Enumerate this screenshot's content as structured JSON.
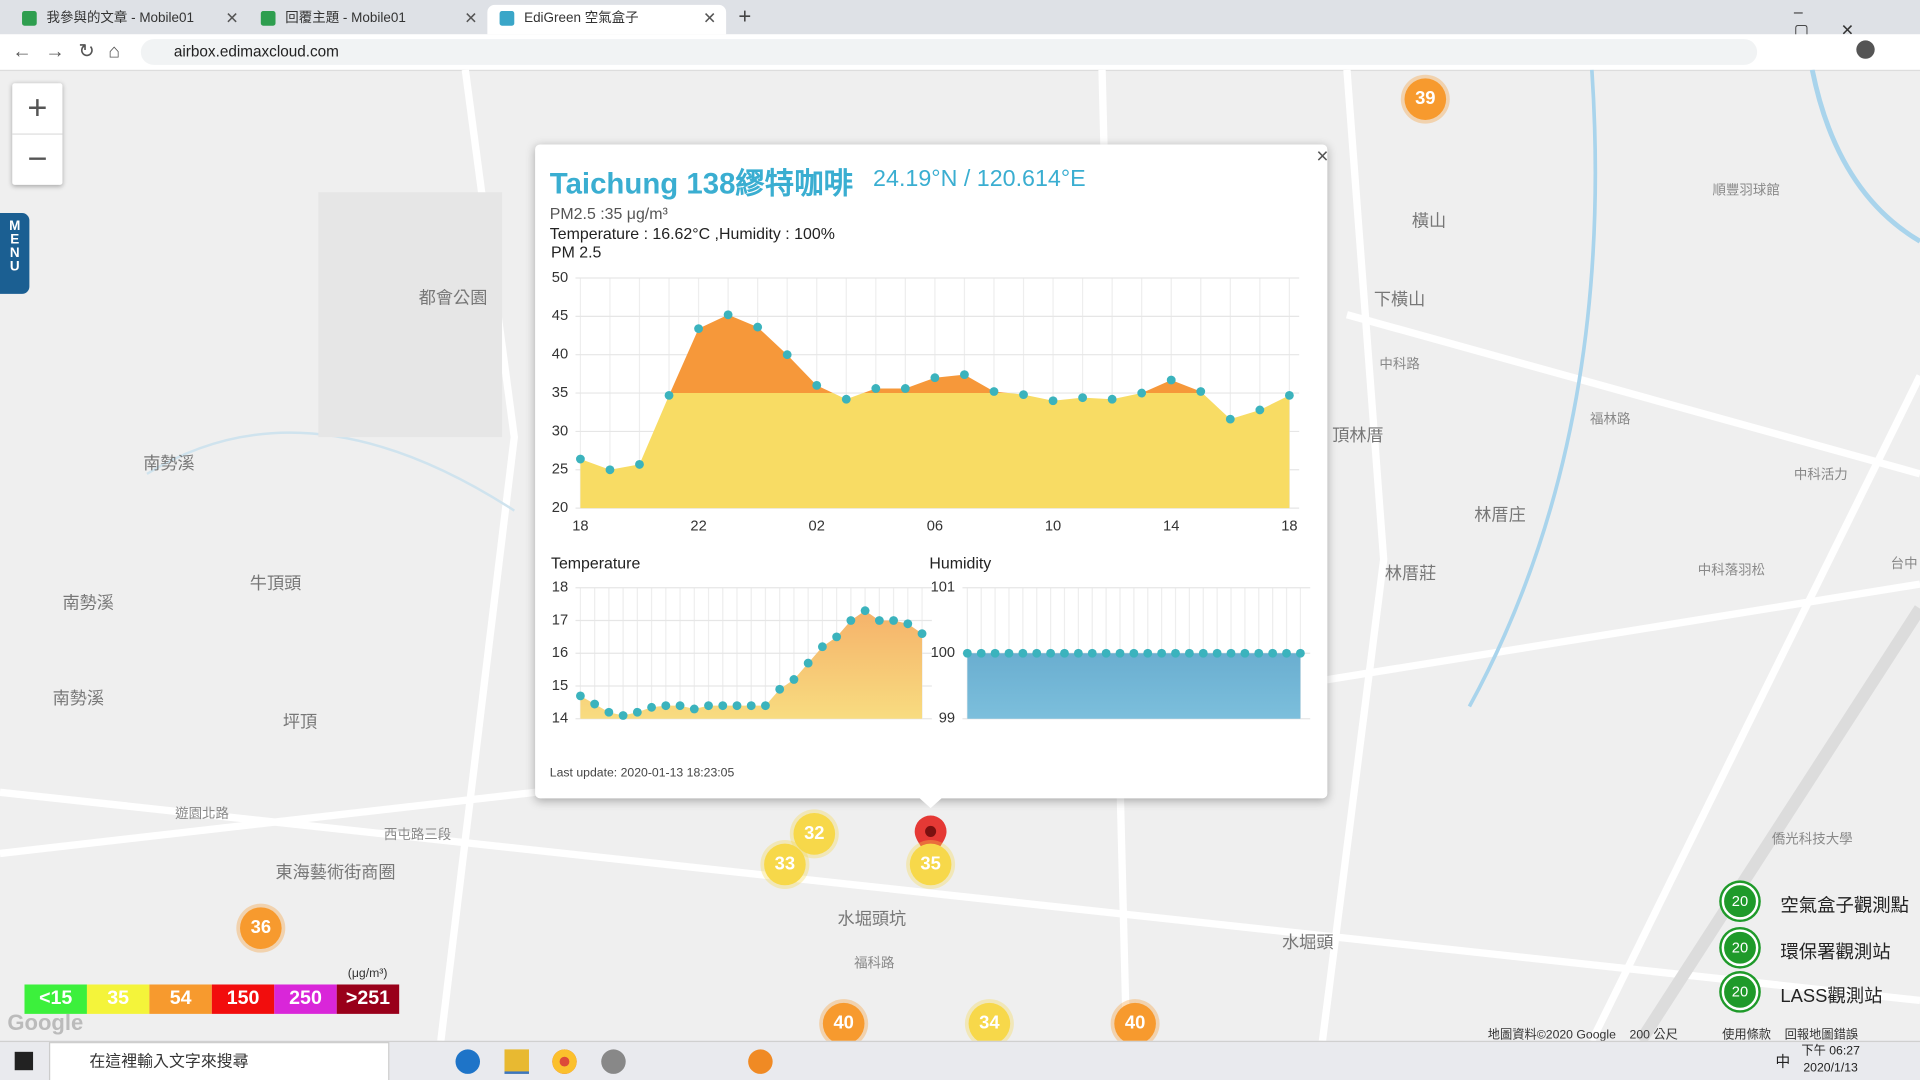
{
  "browser": {
    "tabs": [
      "我參與的文章 - Mobile01",
      "回覆主題 - Mobile01",
      "EdiGreen 空氣盒子"
    ],
    "url": "airbox.edimaxcloud.com"
  },
  "map": {
    "zoom_in": "+",
    "zoom_out": "−",
    "menu": [
      "M",
      "E",
      "N",
      "U"
    ],
    "places": [
      "牛頂頭",
      "坪頂",
      "南勢溪",
      "南勢溪",
      "南勢溪",
      "都會公園",
      "東海藝術街商圈",
      "橫山",
      "下橫山",
      "頂林厝",
      "林厝庄",
      "林厝莊",
      "水堀頭",
      "水堀頭坑",
      "順豐羽球館",
      "中科活力",
      "中科落羽松",
      "僑光科技大學",
      "西屯路三段",
      "遊園北路",
      "福科路",
      "中科路",
      "福林路",
      "台中"
    ],
    "markers": [
      "39",
      "36",
      "32",
      "33",
      "35",
      "40",
      "34",
      "40"
    ],
    "legend": [
      {
        "label": "<15",
        "color": "#3cf03c"
      },
      {
        "label": "35",
        "color": "#f4f43a"
      },
      {
        "label": "54",
        "color": "#f79a2e"
      },
      {
        "label": "150",
        "color": "#f20d0d"
      },
      {
        "label": "250",
        "color": "#d926d9"
      },
      {
        "label": ">251",
        "color": "#99001a"
      }
    ],
    "legend_unit": "(μg/m³)",
    "station_legend": [
      {
        "icon": "20",
        "label": "空氣盒子觀測點"
      },
      {
        "icon": "20",
        "label": "環保署觀測站"
      },
      {
        "icon": "20",
        "label": "LASS觀測站"
      }
    ],
    "footer": [
      "地圖資料©2020 Google",
      "200 公尺",
      "使用條款",
      "回報地圖錯誤"
    ],
    "google": "Google"
  },
  "popup": {
    "title": "Taichung 138繆特咖啡",
    "coords": "24.19°N / 120.614°E",
    "pm25": "PM2.5 :35 μg/m³",
    "conditions": "Temperature : 16.62°C ,Humidity : 100%",
    "close": "×",
    "last_update": "Last update: 2020-01-13 18:23:05"
  },
  "chart_data": [
    {
      "type": "area",
      "title": "PM 2.5",
      "categories": [
        "18",
        null,
        null,
        null,
        "22",
        null,
        null,
        null,
        "02",
        null,
        null,
        null,
        "06",
        null,
        null,
        null,
        "10",
        null,
        null,
        null,
        "14",
        null,
        null,
        null,
        "18"
      ],
      "values": [
        26.4,
        25,
        25.7,
        34.7,
        43.4,
        45.2,
        43.6,
        40,
        36,
        34.2,
        35.6,
        35.6,
        37,
        37.4,
        35.2,
        34.8,
        34,
        34.4,
        34.2,
        35,
        36.7,
        35.2,
        31.6,
        32.8,
        34.7
      ],
      "colors": [
        "#f8dc64",
        "#f6983a"
      ],
      "point_color": "#3bb3bd",
      "ylim": [
        20,
        50
      ],
      "yticks": [
        20,
        25,
        30,
        35,
        40,
        45,
        50
      ],
      "grid": true
    },
    {
      "type": "area",
      "title": "Temperature",
      "values": [
        14.7,
        14.45,
        14.2,
        14.1,
        14.2,
        14.35,
        14.4,
        14.4,
        14.3,
        14.4,
        14.4,
        14.4,
        14.4,
        14.4,
        14.9,
        15.2,
        15.7,
        16.2,
        16.5,
        17,
        17.3,
        17,
        17,
        16.9,
        16.6
      ],
      "colors": [
        "#f8dc80",
        "#f5b26a"
      ],
      "point_color": "#3bb3bd",
      "ylim": [
        14,
        18
      ],
      "yticks": [
        14,
        15,
        16,
        17,
        18
      ],
      "grid": true
    },
    {
      "type": "area",
      "title": "Humidity",
      "values": [
        100,
        100,
        100,
        100,
        100,
        100,
        100,
        100,
        100,
        100,
        100,
        100,
        100,
        100,
        100,
        100,
        100,
        100,
        100,
        100,
        100,
        100,
        100,
        100,
        100
      ],
      "colors": [
        "#7cbfdc",
        "#6aaed0"
      ],
      "point_color": "#3bb3bd",
      "ylim": [
        99,
        101
      ],
      "yticks": [
        99,
        100,
        101
      ],
      "grid": true
    }
  ],
  "taskbar": {
    "search": "在這裡輸入文字來搜尋",
    "ime": "中",
    "time": "下午 06:27",
    "date": "2020/1/13"
  }
}
